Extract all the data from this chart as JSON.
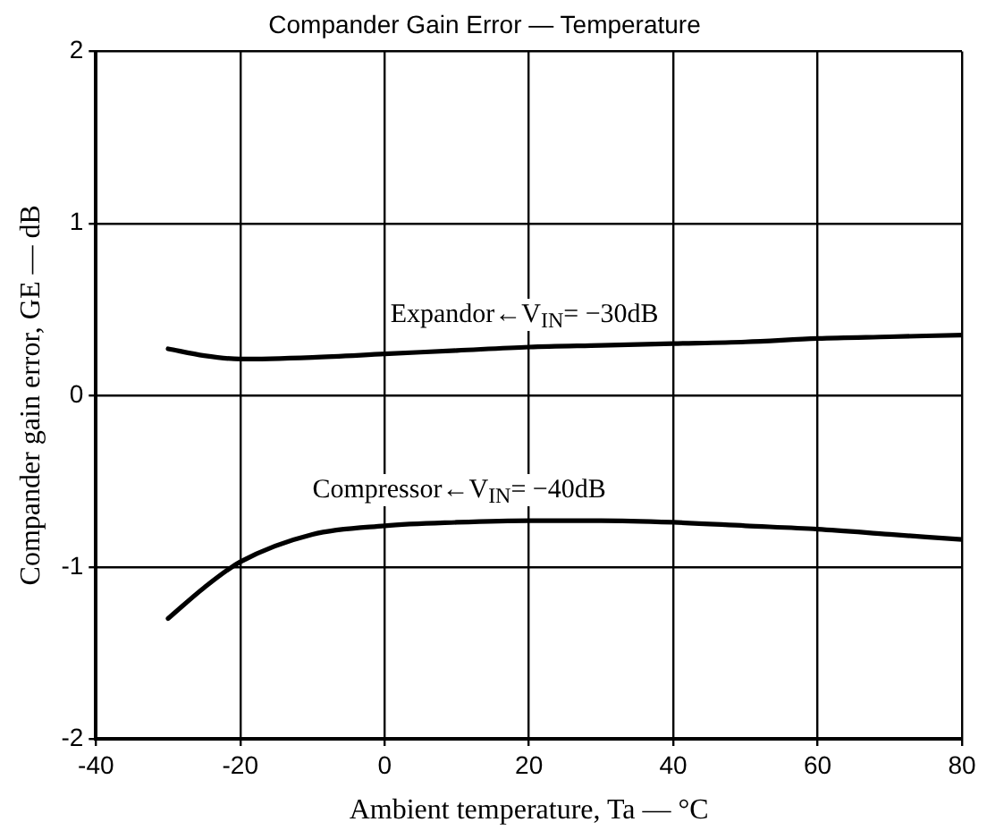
{
  "chart_data": {
    "type": "line",
    "title": "Compander Gain Error — Temperature",
    "xlabel": "Ambient temperature, Ta — °C",
    "ylabel": "Compander gain error, GE — dB",
    "x": [
      -30,
      -25,
      -20,
      -10,
      0,
      10,
      20,
      30,
      40,
      50,
      60,
      70,
      80
    ],
    "series": [
      {
        "color": "#000000",
        "values": [
          0.27,
          0.23,
          0.21,
          0.22,
          0.24,
          0.26,
          0.28,
          0.29,
          0.3,
          0.31,
          0.33,
          0.34,
          0.35
        ]
      },
      {
        "color": "#000000",
        "values": [
          -1.3,
          -1.12,
          -0.97,
          -0.81,
          -0.76,
          -0.74,
          -0.73,
          -0.73,
          -0.74,
          -0.76,
          -0.78,
          -0.81,
          -0.84
        ]
      }
    ],
    "xlim": [
      -40,
      80
    ],
    "xticks": [
      -40,
      -20,
      0,
      20,
      40,
      60,
      80
    ],
    "ylim": [
      -2,
      2
    ],
    "yticks": [
      -2,
      -1,
      0,
      1,
      2
    ],
    "grid": true,
    "legend": false,
    "marker": "none",
    "line_style": "solid",
    "annotations": [
      "Expandor←V$_{IN}$= −30dB",
      "Compressor←V$_{IN}$= −40dB"
    ]
  }
}
